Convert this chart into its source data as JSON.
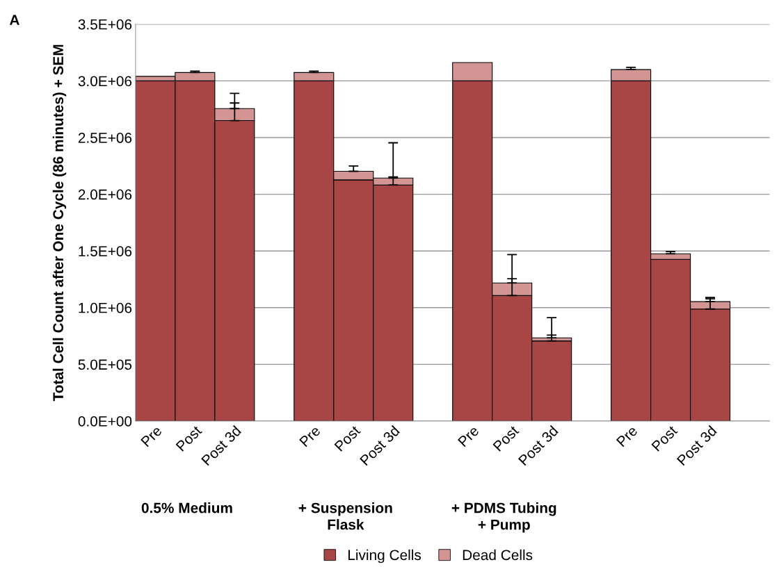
{
  "chart_data": {
    "type": "bar",
    "stacked": true,
    "ylabel": "Total Cell Count after One Cycle (86 minutes) + SEM",
    "categories": [
      "Pre",
      "Post",
      "Post 3d",
      null,
      "Pre",
      "Post",
      "Post 3d",
      null,
      "Pre",
      "Post",
      "Post 3d",
      null,
      "Pre",
      "Post",
      "Post 3d",
      null
    ],
    "series": [
      {
        "name": "Living Cells",
        "color": "#a84545",
        "values": [
          3000000,
          3000000,
          2650000,
          null,
          3000000,
          2127000,
          2082000,
          null,
          3000000,
          1107000,
          707000,
          null,
          3000000,
          1426000,
          988000,
          null
        ],
        "errors": [
          null,
          null,
          [
            2650000,
            2805000
          ],
          null,
          null,
          null,
          [
            2082000,
            2153000
          ],
          null,
          null,
          [
            1107000,
            1255000
          ],
          [
            707000,
            758000
          ],
          null,
          null,
          null,
          [
            988000,
            1078000
          ],
          null
        ]
      },
      {
        "name": "Dead Cells",
        "color": "#d39494",
        "values": [
          40000,
          74000,
          106000,
          null,
          74000,
          76000,
          61000,
          null,
          162000,
          111000,
          27000,
          null,
          100000,
          49000,
          65000,
          null
        ],
        "errors": [
          null,
          [
            3074000,
            3086000
          ],
          [
            2756000,
            2890000
          ],
          null,
          [
            3074000,
            3086000
          ],
          [
            2203000,
            2250000
          ],
          [
            2143000,
            2454000
          ],
          null,
          null,
          [
            1218000,
            1468000
          ],
          [
            734000,
            912000
          ],
          null,
          [
            3100000,
            3120000
          ],
          [
            1475000,
            1495000
          ],
          [
            1053000,
            1090000
          ],
          null
        ]
      }
    ],
    "ylim": [
      0,
      3500000
    ],
    "yticks": [
      {
        "value": 0,
        "label": "0.0E+00"
      },
      {
        "value": 500000,
        "label": "5.0E+05"
      },
      {
        "value": 1000000,
        "label": "1.0E+06"
      },
      {
        "value": 1500000,
        "label": "1.5E+06"
      },
      {
        "value": 2000000,
        "label": "2.0E+06"
      },
      {
        "value": 2500000,
        "label": "2.5E+06"
      },
      {
        "value": 3000000,
        "label": "3.0E+06"
      },
      {
        "value": 3500000,
        "label": "3.5E+06"
      }
    ],
    "grid": "y",
    "legend": "bottom",
    "annotations": [
      "A",
      "0.5% Medium",
      "+ Suspension\nFlask",
      "+ PDMS Tubing\n+ Pump"
    ]
  }
}
